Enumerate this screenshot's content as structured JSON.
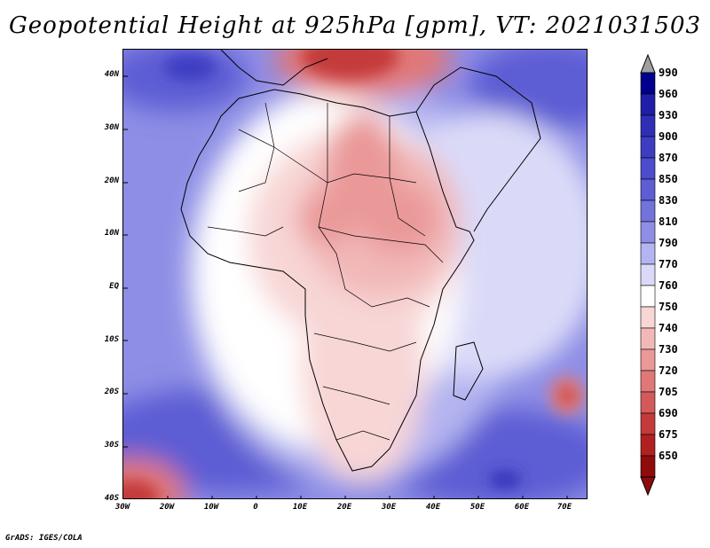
{
  "title": "Geopotential Height at 925hPa [gpm], VT: 2021031503",
  "credit": "GrADS: IGES/COLA",
  "map": {
    "lat_labels": [
      "40N",
      "30N",
      "20N",
      "10N",
      "EQ",
      "10S",
      "20S",
      "30S",
      "40S"
    ],
    "lon_labels": [
      "30W",
      "20W",
      "10W",
      "0",
      "10E",
      "20E",
      "30E",
      "40E",
      "50E",
      "60E",
      "70E"
    ],
    "extent": {
      "lon_min": -30,
      "lon_max": 75,
      "lat_min": -40,
      "lat_max": 44
    }
  },
  "colorbar": {
    "levels": [
      "990",
      "960",
      "930",
      "900",
      "870",
      "850",
      "830",
      "810",
      "790",
      "770",
      "760",
      "750",
      "740",
      "730",
      "720",
      "705",
      "690",
      "675",
      "650"
    ],
    "colors": [
      "#00008c",
      "#1e1ea6",
      "#2f2fb6",
      "#3d3dc2",
      "#4c4ccc",
      "#5d5dd4",
      "#7373dc",
      "#8e8ee6",
      "#b4b4f0",
      "#dadaf8",
      "#ffffff",
      "#f8d6d6",
      "#f2b8b8",
      "#ea9898",
      "#e07878",
      "#d45a5a",
      "#c43a3a",
      "#b02020",
      "#8e0c0c"
    ],
    "top_arrow_color": "#a0a0a0",
    "bottom_arrow_color": "#8e0c0c"
  }
}
